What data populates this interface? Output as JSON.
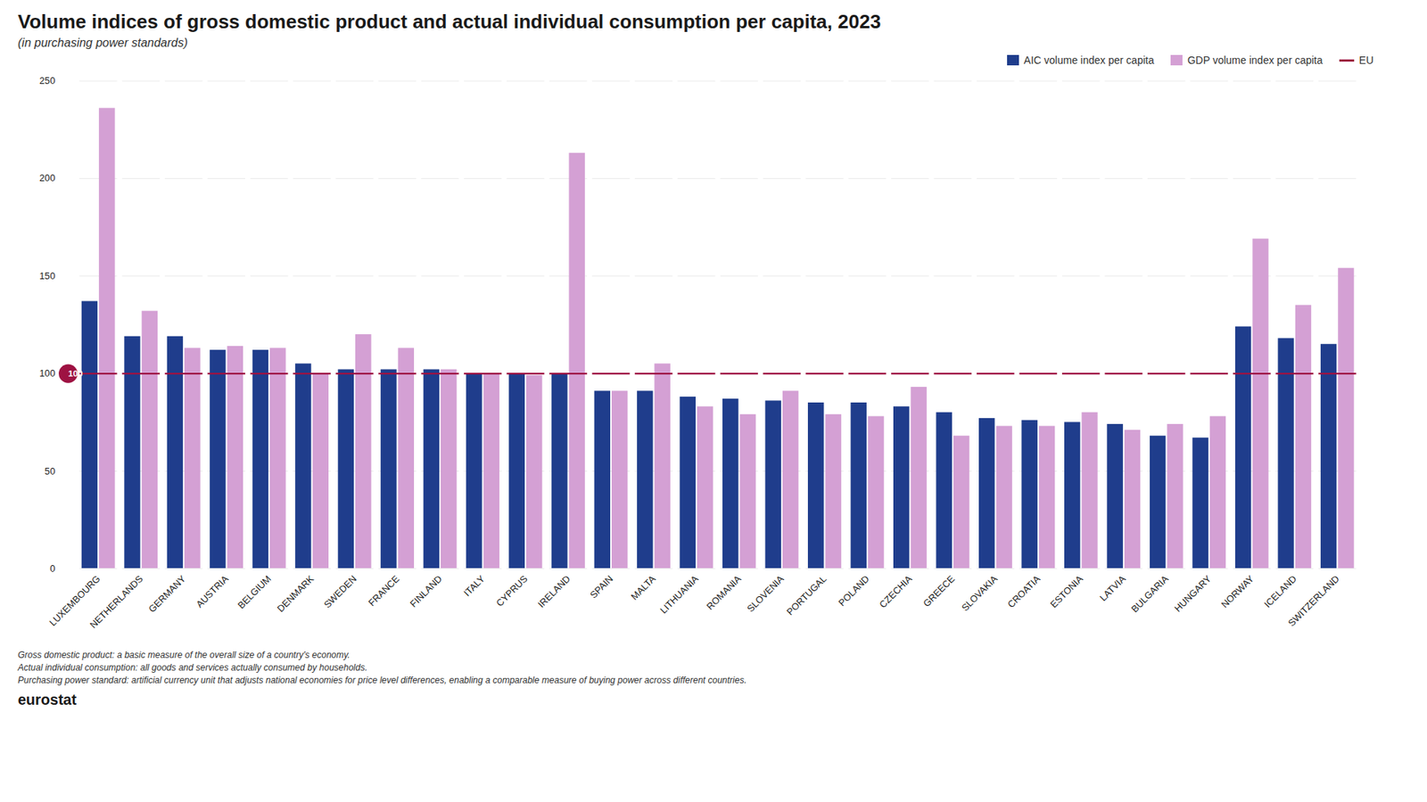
{
  "chart_data": {
    "type": "bar",
    "title": "Volume indices of gross domestic product and actual individual consumption per capita, 2023",
    "subtitle": "(in purchasing power standards)",
    "categories": [
      "LUXEMBOURG",
      "NETHERLANDS",
      "GERMANY",
      "AUSTRIA",
      "BELGIUM",
      "DENMARK",
      "SWEDEN",
      "FRANCE",
      "FINLAND",
      "ITALY",
      "CYPRUS",
      "IRELAND",
      "SPAIN",
      "MALTA",
      "LITHUANIA",
      "ROMANIA",
      "SLOVENIA",
      "PORTUGAL",
      "POLAND",
      "CZECHIA",
      "GREECE",
      "SLOVAKIA",
      "CROATIA",
      "ESTONIA",
      "LATVIA",
      "BULGARIA",
      "HUNGARY",
      "NORWAY",
      "ICELAND",
      "SWITZERLAND"
    ],
    "series": [
      {
        "name": "AIC volume index per capita",
        "color": "#1f3d8c",
        "values": [
          137,
          119,
          119,
          112,
          112,
          105,
          102,
          102,
          102,
          100,
          100,
          100,
          91,
          91,
          88,
          87,
          86,
          85,
          85,
          83,
          80,
          77,
          76,
          75,
          74,
          68,
          67,
          124,
          118,
          115
        ]
      },
      {
        "name": "GDP volume index per capita",
        "color": "#d4a0d4",
        "values": [
          236,
          132,
          113,
          114,
          113,
          100,
          120,
          113,
          102,
          100,
          99,
          213,
          91,
          105,
          83,
          79,
          91,
          79,
          78,
          93,
          68,
          73,
          73,
          80,
          71,
          74,
          78,
          169,
          135,
          154
        ]
      }
    ],
    "reference_line": {
      "name": "EU",
      "value": 100,
      "color": "#9e1242"
    },
    "ylim": [
      0,
      250
    ],
    "yticks": [
      0,
      50,
      100,
      150,
      200,
      250
    ],
    "grid": true,
    "legend": "upper right",
    "footnotes": [
      "Gross domestic product: a basic measure of the overall size of a country's economy.",
      "Actual individual consumption: all goods and services actually consumed by households.",
      "Purchasing power standard: artificial currency unit that adjusts national economies for price level differences, enabling a comparable measure of buying power across different countries."
    ],
    "logo_text": "eurostat"
  }
}
